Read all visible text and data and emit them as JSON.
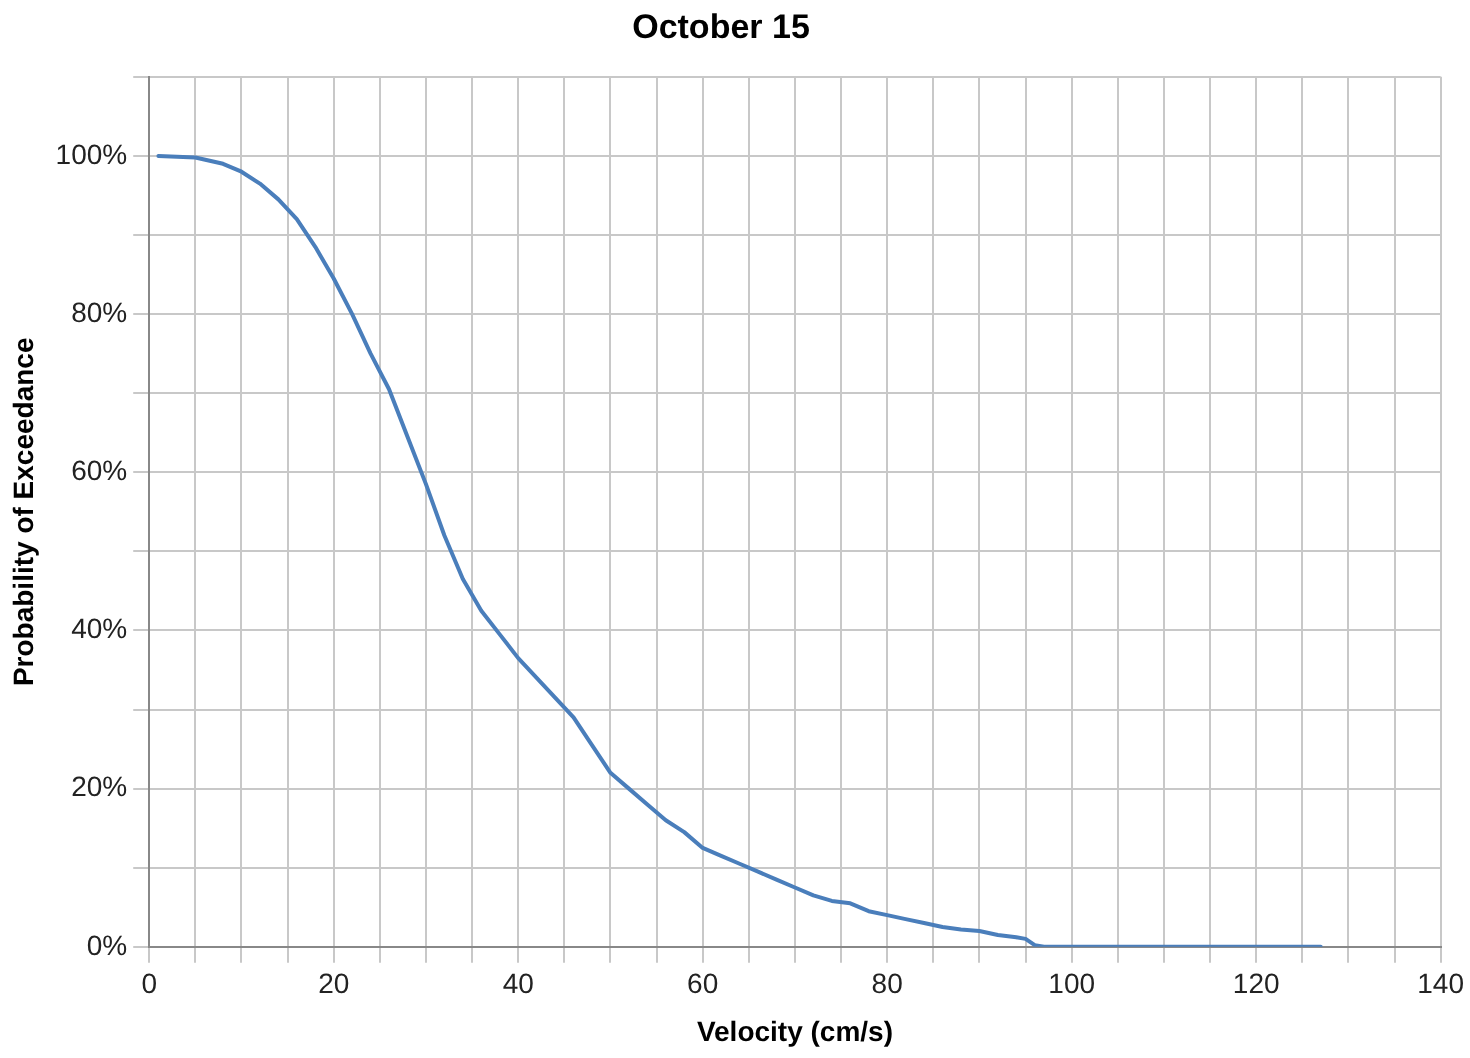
{
  "chart_data": {
    "type": "line",
    "title": "October 15",
    "xlabel": "Velocity (cm/s)",
    "ylabel": "Probability of Exceedance",
    "x": [
      1,
      5,
      8,
      10,
      12,
      14,
      16,
      18,
      20,
      22,
      24,
      26,
      28,
      30,
      32,
      34,
      36,
      38,
      40,
      42,
      44,
      46,
      48,
      50,
      52,
      54,
      56,
      58,
      60,
      62,
      64,
      66,
      68,
      70,
      72,
      74,
      76,
      78,
      80,
      82,
      84,
      86,
      88,
      90,
      92,
      94,
      95,
      96,
      97,
      127
    ],
    "series": [
      {
        "color": "#4a7ebb",
        "values": [
          100,
          99.8,
          99,
          98,
          96.5,
          94.5,
          92,
          88.5,
          84.5,
          80,
          75,
          70.5,
          64.5,
          58.5,
          52,
          46.5,
          42.5,
          39.5,
          36.5,
          34,
          31.5,
          29,
          25.5,
          22,
          20,
          18,
          16,
          14.5,
          12.5,
          11.5,
          10.5,
          9.5,
          8.5,
          7.5,
          6.5,
          5.8,
          5.5,
          4.5,
          4,
          3.5,
          3,
          2.5,
          2.2,
          2,
          1.5,
          1.2,
          1,
          0.2,
          0,
          0
        ]
      }
    ],
    "xlim": [
      0,
      140
    ],
    "xticks": [
      0,
      {
        "value": 5,
        "label": null
      },
      {
        "value": 10,
        "label": null
      },
      {
        "value": 15,
        "label": null
      },
      20,
      {
        "value": 25,
        "label": null
      },
      {
        "value": 30,
        "label": null
      },
      {
        "value": 35,
        "label": null
      },
      40,
      {
        "value": 45,
        "label": null
      },
      {
        "value": 50,
        "label": null
      },
      {
        "value": 55,
        "label": null
      },
      60,
      {
        "value": 65,
        "label": null
      },
      {
        "value": 70,
        "label": null
      },
      {
        "value": 75,
        "label": null
      },
      80,
      {
        "value": 85,
        "label": null
      },
      {
        "value": 90,
        "label": null
      },
      {
        "value": 95,
        "label": null
      },
      100,
      {
        "value": 105,
        "label": null
      },
      {
        "value": 110,
        "label": null
      },
      {
        "value": 115,
        "label": null
      },
      120,
      {
        "value": 125,
        "label": null
      },
      {
        "value": 130,
        "label": null
      },
      {
        "value": 135,
        "label": null
      },
      140
    ],
    "ylim": [
      0,
      110
    ],
    "yticks": [
      {
        "value": 0,
        "label": "0%"
      },
      {
        "value": 10,
        "label": null
      },
      {
        "value": 20,
        "label": "20%"
      },
      {
        "value": 30,
        "label": null
      },
      {
        "value": 40,
        "label": "40%"
      },
      {
        "value": 50,
        "label": null
      },
      {
        "value": 60,
        "label": "60%"
      },
      {
        "value": 70,
        "label": null
      },
      {
        "value": 80,
        "label": "80%"
      },
      {
        "value": 90,
        "label": null
      },
      {
        "value": 100,
        "label": "100%"
      },
      {
        "value": 110,
        "label": null
      }
    ],
    "grid": true,
    "marker": "none",
    "line_style": "solid"
  }
}
